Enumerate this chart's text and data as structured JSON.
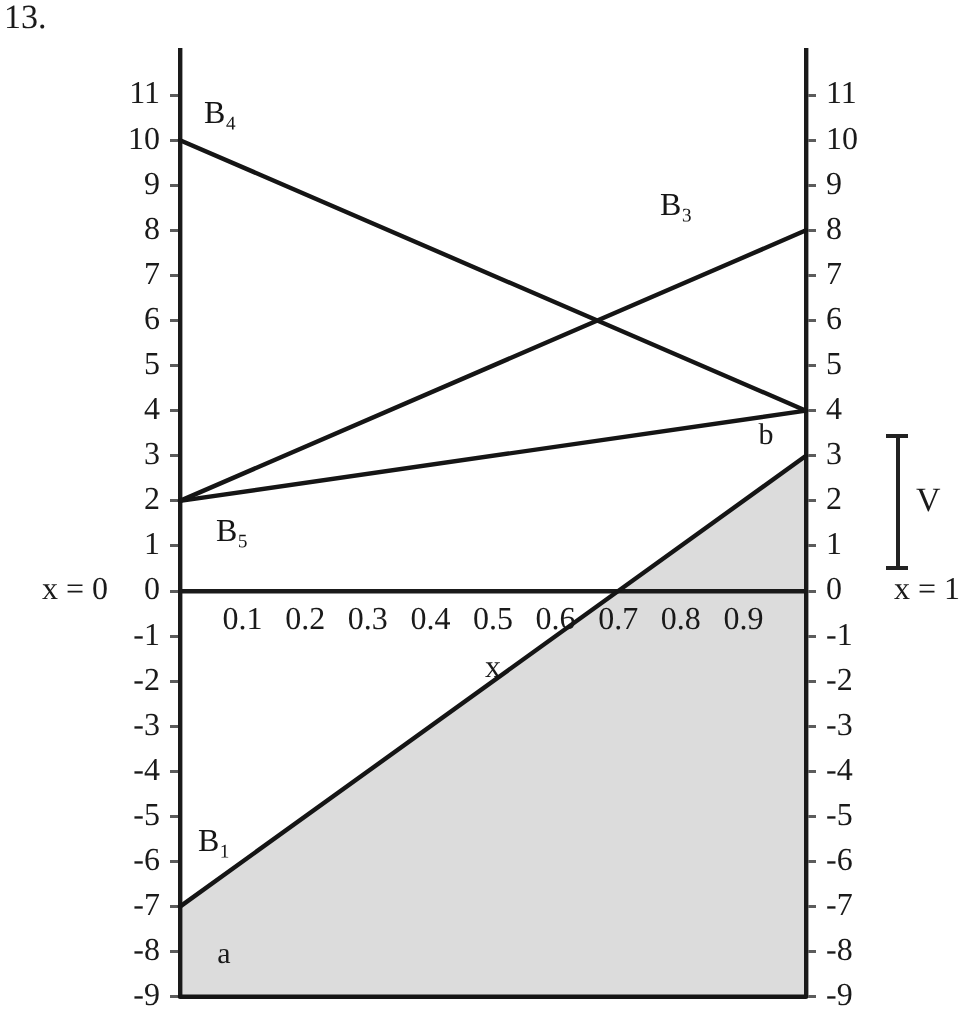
{
  "chart_data": {
    "type": "line",
    "xlabel": "x",
    "x": [
      0,
      1
    ],
    "series": [
      {
        "color": "#151515",
        "values": [
          -9,
          -9
        ]
      },
      {
        "name": "B₁",
        "color": "#151515",
        "values": [
          -7,
          3
        ],
        "lower": [
          -9,
          -9
        ],
        "upper": [
          -7,
          3
        ]
      },
      {
        "name": "B₃",
        "color": "#151515",
        "values": [
          2,
          8
        ]
      },
      {
        "name": "B₄",
        "color": "#151515",
        "values": [
          10,
          4
        ]
      },
      {
        "name": "B₅",
        "color": "#151515",
        "values": [
          2,
          4
        ]
      }
    ],
    "xlim": [
      0,
      1
    ],
    "xticks": [
      0.1,
      0.2,
      0.3,
      0.4,
      0.5,
      0.6,
      0.7,
      0.8,
      0.9
    ],
    "ylim": [
      -9,
      12
    ],
    "yticks": [
      -9,
      -8,
      -7,
      -6,
      -5,
      -4,
      -3,
      -2,
      -1,
      0,
      1,
      2,
      3,
      4,
      5,
      6,
      7,
      8,
      9,
      10,
      11
    ],
    "y2lim": [
      -9,
      12
    ],
    "y2ticks": [
      -9,
      -8,
      -7,
      -6,
      -5,
      -4,
      -3,
      -2,
      -1,
      0,
      1,
      2,
      3,
      4,
      5,
      6,
      7,
      8,
      9,
      10,
      11
    ],
    "annotations": [
      "13.",
      "x = 0",
      "x = 1",
      {
        "text": "a",
        "x": 0,
        "y": -7
      },
      {
        "text": "b",
        "x": 1,
        "y": 3
      },
      "V"
    ],
    "grid": false,
    "legend": false,
    "marker": "none",
    "line_style": "solid"
  }
}
